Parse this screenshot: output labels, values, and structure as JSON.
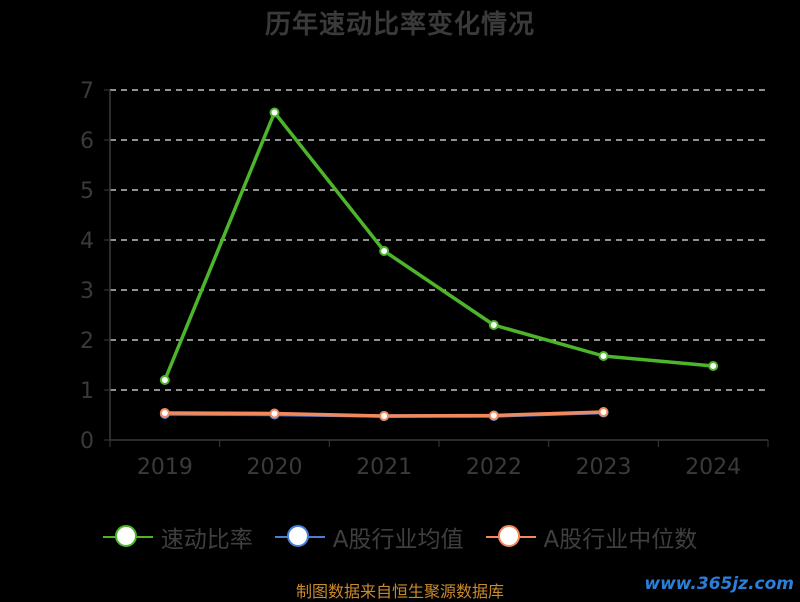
{
  "chart_data": {
    "type": "line",
    "title": "历年速动比率变化情况",
    "categories": [
      "2019",
      "2020",
      "2021",
      "2022",
      "2023",
      "2024"
    ],
    "ylim": [
      0,
      7
    ],
    "yticks": [
      "0",
      "1",
      "2",
      "3",
      "4",
      "5",
      "6",
      "7"
    ],
    "grid": "dashed horizontal",
    "series": [
      {
        "name": "速动比率",
        "color": "#4db52a",
        "values": [
          1.2,
          6.55,
          3.78,
          2.3,
          1.68,
          1.48
        ]
      },
      {
        "name": "A股行业均值",
        "color": "#4a7fd6",
        "values": [
          0.52,
          0.51,
          0.48,
          0.48,
          0.55,
          null
        ]
      },
      {
        "name": "A股行业中位数",
        "color": "#f08a5d",
        "values": [
          0.54,
          0.53,
          0.48,
          0.49,
          0.56,
          null
        ]
      }
    ],
    "legend_position": "bottom"
  },
  "footer": "制图数据来自恒生聚源数据库",
  "watermark": "www.365jz.com"
}
